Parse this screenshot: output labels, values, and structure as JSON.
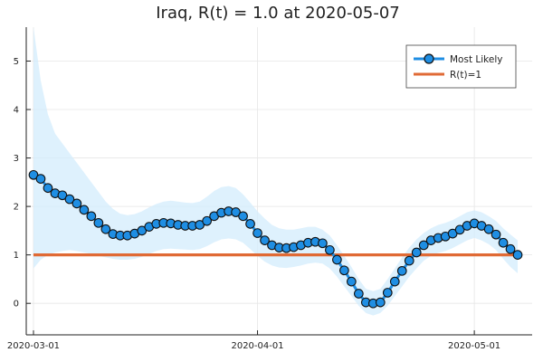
{
  "chart_data": {
    "type": "line",
    "title": "Iraq, R(t) = 1.0 at 2020-05-07",
    "xlabel": "",
    "ylabel": "",
    "x_ticks": [
      {
        "label": "2020-03-01",
        "day": 0
      },
      {
        "label": "2020-04-01",
        "day": 31
      },
      {
        "label": "2020-05-01",
        "day": 61
      }
    ],
    "y_ticks": [
      0,
      1,
      2,
      3,
      4,
      5
    ],
    "ylim": [
      -0.65,
      5.7
    ],
    "x_domain_days": [
      -1,
      69
    ],
    "grid": true,
    "legend_position": "top-right",
    "colors": {
      "most_likely": "#1f8ee3",
      "marker_edge": "#111111",
      "reference": "#e06a35",
      "band": "#d3ecfc"
    },
    "series": [
      {
        "name": "Most Likely",
        "values": [
          2.65,
          2.57,
          2.38,
          2.27,
          2.23,
          2.15,
          2.06,
          1.93,
          1.8,
          1.66,
          1.53,
          1.43,
          1.4,
          1.4,
          1.44,
          1.5,
          1.58,
          1.64,
          1.66,
          1.65,
          1.62,
          1.6,
          1.6,
          1.62,
          1.7,
          1.8,
          1.87,
          1.9,
          1.88,
          1.8,
          1.64,
          1.45,
          1.3,
          1.2,
          1.15,
          1.14,
          1.16,
          1.2,
          1.25,
          1.27,
          1.24,
          1.1,
          0.9,
          0.68,
          0.45,
          0.2,
          0.02,
          0.0,
          0.02,
          0.22,
          0.45,
          0.67,
          0.88,
          1.05,
          1.2,
          1.3,
          1.35,
          1.38,
          1.44,
          1.52,
          1.6,
          1.65,
          1.6,
          1.53,
          1.42,
          1.25,
          1.12,
          1.0
        ]
      },
      {
        "name": "R(t)=1",
        "values": [
          1,
          1
        ]
      }
    ],
    "band": {
      "upper": [
        5.7,
        4.6,
        3.9,
        3.5,
        3.3,
        3.1,
        2.9,
        2.7,
        2.5,
        2.3,
        2.1,
        1.95,
        1.85,
        1.82,
        1.84,
        1.9,
        1.98,
        2.05,
        2.1,
        2.12,
        2.1,
        2.08,
        2.07,
        2.1,
        2.2,
        2.32,
        2.4,
        2.42,
        2.38,
        2.25,
        2.08,
        1.9,
        1.75,
        1.62,
        1.55,
        1.52,
        1.52,
        1.55,
        1.58,
        1.58,
        1.52,
        1.4,
        1.2,
        0.98,
        0.75,
        0.5,
        0.3,
        0.25,
        0.3,
        0.5,
        0.72,
        0.95,
        1.15,
        1.32,
        1.45,
        1.55,
        1.62,
        1.66,
        1.72,
        1.8,
        1.88,
        1.92,
        1.88,
        1.8,
        1.7,
        1.55,
        1.42,
        1.3
      ],
      "lower": [
        0.72,
        0.9,
        1.0,
        1.05,
        1.08,
        1.1,
        1.08,
        1.05,
        1.02,
        0.98,
        0.95,
        0.92,
        0.9,
        0.9,
        0.92,
        0.96,
        1.02,
        1.08,
        1.12,
        1.13,
        1.12,
        1.11,
        1.1,
        1.12,
        1.18,
        1.26,
        1.32,
        1.34,
        1.32,
        1.25,
        1.12,
        0.98,
        0.86,
        0.78,
        0.74,
        0.73,
        0.75,
        0.78,
        0.82,
        0.84,
        0.82,
        0.72,
        0.55,
        0.35,
        0.15,
        -0.05,
        -0.2,
        -0.25,
        -0.2,
        -0.05,
        0.15,
        0.35,
        0.55,
        0.72,
        0.88,
        0.98,
        1.04,
        1.08,
        1.14,
        1.22,
        1.3,
        1.35,
        1.3,
        1.22,
        1.1,
        0.92,
        0.75,
        0.62
      ]
    }
  }
}
